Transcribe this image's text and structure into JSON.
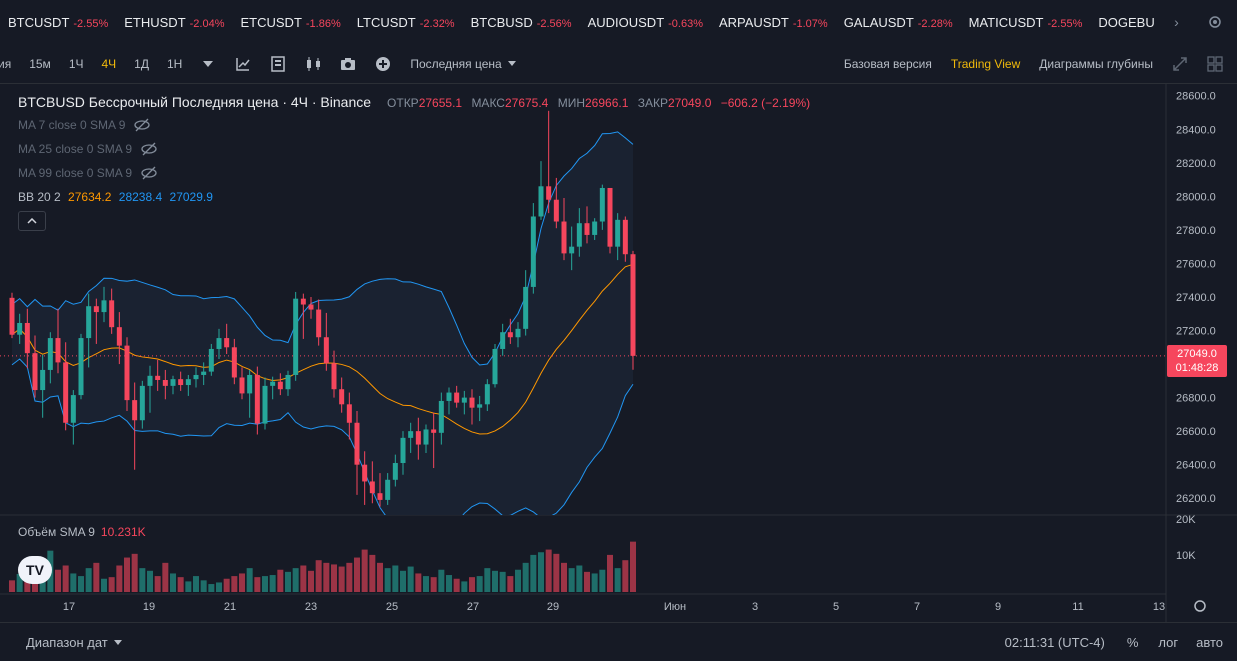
{
  "ticker": [
    {
      "symbol": "BTCUSDT",
      "change": "-2.55%"
    },
    {
      "symbol": "ETHUSDT",
      "change": "-2.04%"
    },
    {
      "symbol": "ETCUSDT",
      "change": "-1.86%"
    },
    {
      "symbol": "LTCUSDT",
      "change": "-2.32%"
    },
    {
      "symbol": "BTCBUSD",
      "change": "-2.56%"
    },
    {
      "symbol": "AUDIOUSDT",
      "change": "-0.63%"
    },
    {
      "symbol": "ARPAUSDT",
      "change": "-1.07%"
    },
    {
      "symbol": "GALAUSDT",
      "change": "-2.28%"
    },
    {
      "symbol": "MATICUSDT",
      "change": "-2.55%"
    },
    {
      "symbol": "DOGEBU",
      "change": ""
    }
  ],
  "toolbar": {
    "intervals": [
      "ия",
      "15м",
      "1Ч",
      "4Ч",
      "1Д",
      "1Н"
    ],
    "active_interval": "4Ч",
    "price_type": "Последняя цена",
    "views": [
      "Базовая версия",
      "Trading View",
      "Диаграммы глубины"
    ],
    "active_view": "Trading View"
  },
  "legend": {
    "symbol": "BTCBUSD Бессрочный Последняя цена · 4Ч · Binance",
    "open_label": "ОТКР",
    "open": "27655.1",
    "high_label": "МАКС",
    "high": "27675.4",
    "low_label": "МИН",
    "low": "26966.1",
    "close_label": "ЗАКР",
    "close": "27049.0",
    "change": "−606.2 (−2.19%)",
    "ma": [
      "MA 7 close 0 SMA 9",
      "MA 25 close 0 SMA 9",
      "MA 99 close 0 SMA 9"
    ],
    "bb_label": "BB 20 2",
    "bb_basis": "27634.2",
    "bb_upper": "28238.4",
    "bb_lower": "27029.9"
  },
  "volume": {
    "label": "Объём SMA 9",
    "value": "10.231K"
  },
  "price_tag": {
    "price": "27049.0",
    "countdown": "01:48:28"
  },
  "bottom": {
    "date_range": "Диапазон дат",
    "time": "02:11:31 (UTC-4)",
    "pct": "%",
    "log": "лог",
    "auto": "авто"
  },
  "colors": {
    "up": "#26a69a",
    "down": "#f6465d",
    "accent": "#f0b90b",
    "basis": "#ff9800",
    "band": "#2196f3"
  },
  "chart_data": {
    "type": "candlestick",
    "y_ticks": [
      "28600.0",
      "28400.0",
      "28200.0",
      "28000.0",
      "27800.0",
      "27600.0",
      "27400.0",
      "27200.0",
      "27000.0",
      "26800.0",
      "26600.0",
      "26400.0",
      "26200.0"
    ],
    "y_range": [
      26100,
      28670
    ],
    "volume_ticks": [
      "20K",
      "10K"
    ],
    "x_ticks": [
      "17",
      "19",
      "21",
      "23",
      "25",
      "27",
      "29",
      "Июн",
      "3",
      "5",
      "7",
      "9",
      "11",
      "13"
    ],
    "last_price": 27049.0,
    "candles": [
      [
        27395,
        27425,
        27155,
        27175
      ],
      [
        27175,
        27300,
        27120,
        27245
      ],
      [
        27245,
        27330,
        26975,
        27065
      ],
      [
        27065,
        27170,
        26800,
        26845
      ],
      [
        26845,
        27055,
        26680,
        26965
      ],
      [
        26965,
        27190,
        26885,
        27155
      ],
      [
        27155,
        27330,
        26945,
        27010
      ],
      [
        27010,
        27130,
        26605,
        26650
      ],
      [
        26650,
        26845,
        26520,
        26815
      ],
      [
        26815,
        27180,
        26790,
        27155
      ],
      [
        27155,
        27420,
        26980,
        27345
      ],
      [
        27345,
        27390,
        27120,
        27310
      ],
      [
        27310,
        27460,
        27250,
        27380
      ],
      [
        27380,
        27450,
        27180,
        27220
      ],
      [
        27220,
        27310,
        27000,
        27110
      ],
      [
        27110,
        27160,
        26720,
        26785
      ],
      [
        26785,
        26890,
        26370,
        26665
      ],
      [
        26665,
        26900,
        26615,
        26870
      ],
      [
        26870,
        26990,
        26710,
        26930
      ],
      [
        26930,
        27025,
        26840,
        26905
      ],
      [
        26905,
        26965,
        26790,
        26870
      ],
      [
        26870,
        26930,
        26820,
        26910
      ],
      [
        26910,
        26955,
        26840,
        26875
      ],
      [
        26875,
        26935,
        26810,
        26910
      ],
      [
        26910,
        26980,
        26860,
        26935
      ],
      [
        26935,
        27010,
        26875,
        26955
      ],
      [
        26955,
        27120,
        26930,
        27090
      ],
      [
        27090,
        27210,
        27030,
        27155
      ],
      [
        27155,
        27240,
        27060,
        27100
      ],
      [
        27100,
        27150,
        26880,
        26920
      ],
      [
        26920,
        26980,
        26790,
        26825
      ],
      [
        26825,
        26965,
        26680,
        26935
      ],
      [
        26935,
        26985,
        26580,
        26645
      ],
      [
        26645,
        26920,
        26610,
        26870
      ],
      [
        26870,
        26925,
        26790,
        26895
      ],
      [
        26895,
        26945,
        26815,
        26850
      ],
      [
        26850,
        26960,
        26810,
        26935
      ],
      [
        26935,
        27430,
        26900,
        27390
      ],
      [
        27390,
        27420,
        27150,
        27355
      ],
      [
        27355,
        27400,
        27270,
        27325
      ],
      [
        27325,
        27385,
        27110,
        27160
      ],
      [
        27160,
        27305,
        26960,
        27005
      ],
      [
        27005,
        27080,
        26800,
        26850
      ],
      [
        26850,
        26920,
        26710,
        26760
      ],
      [
        26760,
        26830,
        26550,
        26650
      ],
      [
        26650,
        26720,
        26220,
        26400
      ],
      [
        26400,
        26480,
        26160,
        26300
      ],
      [
        26300,
        26420,
        26170,
        26230
      ],
      [
        26230,
        26350,
        26150,
        26190
      ],
      [
        26190,
        26350,
        26160,
        26310
      ],
      [
        26310,
        26460,
        26270,
        26410
      ],
      [
        26410,
        26600,
        26340,
        26560
      ],
      [
        26560,
        26650,
        26470,
        26600
      ],
      [
        26600,
        26680,
        26430,
        26520
      ],
      [
        26520,
        26640,
        26470,
        26610
      ],
      [
        26610,
        26710,
        26380,
        26590
      ],
      [
        26590,
        26830,
        26520,
        26780
      ],
      [
        26780,
        26860,
        26700,
        26830
      ],
      [
        26830,
        26870,
        26740,
        26770
      ],
      [
        26770,
        26840,
        26700,
        26800
      ],
      [
        26800,
        26850,
        26640,
        26740
      ],
      [
        26740,
        26810,
        26660,
        26760
      ],
      [
        26760,
        26910,
        26720,
        26880
      ],
      [
        26880,
        27120,
        26860,
        27090
      ],
      [
        27090,
        27240,
        27050,
        27190
      ],
      [
        27190,
        27270,
        27120,
        27160
      ],
      [
        27160,
        27250,
        27100,
        27210
      ],
      [
        27210,
        27560,
        27170,
        27460
      ],
      [
        27460,
        27960,
        27420,
        27880
      ],
      [
        27880,
        28210,
        27860,
        28060
      ],
      [
        28060,
        28510,
        27900,
        27980
      ],
      [
        27980,
        28110,
        27810,
        27850
      ],
      [
        27850,
        27990,
        27620,
        27660
      ],
      [
        27660,
        27820,
        27560,
        27700
      ],
      [
        27700,
        27930,
        27640,
        27840
      ],
      [
        27840,
        27940,
        27720,
        27770
      ],
      [
        27770,
        27870,
        27740,
        27850
      ],
      [
        27850,
        28070,
        27800,
        28050
      ],
      [
        28050,
        28050,
        27660,
        27700
      ],
      [
        27700,
        27900,
        27620,
        27860
      ],
      [
        27860,
        27880,
        27610,
        27655
      ],
      [
        27655,
        27675,
        26966,
        27049
      ]
    ],
    "volumes": [
      0.22,
      0.34,
      0.48,
      0.55,
      0.6,
      0.78,
      0.42,
      0.5,
      0.35,
      0.3,
      0.45,
      0.55,
      0.25,
      0.28,
      0.5,
      0.65,
      0.72,
      0.45,
      0.4,
      0.3,
      0.55,
      0.35,
      0.28,
      0.2,
      0.3,
      0.22,
      0.15,
      0.18,
      0.25,
      0.3,
      0.35,
      0.45,
      0.28,
      0.3,
      0.32,
      0.42,
      0.38,
      0.45,
      0.5,
      0.4,
      0.6,
      0.55,
      0.52,
      0.48,
      0.55,
      0.65,
      0.8,
      0.7,
      0.55,
      0.45,
      0.5,
      0.4,
      0.48,
      0.35,
      0.3,
      0.28,
      0.42,
      0.32,
      0.25,
      0.2,
      0.28,
      0.3,
      0.45,
      0.4,
      0.38,
      0.3,
      0.42,
      0.55,
      0.7,
      0.75,
      0.8,
      0.72,
      0.55,
      0.45,
      0.5,
      0.38,
      0.35,
      0.42,
      0.7,
      0.45,
      0.6,
      0.95
    ]
  }
}
